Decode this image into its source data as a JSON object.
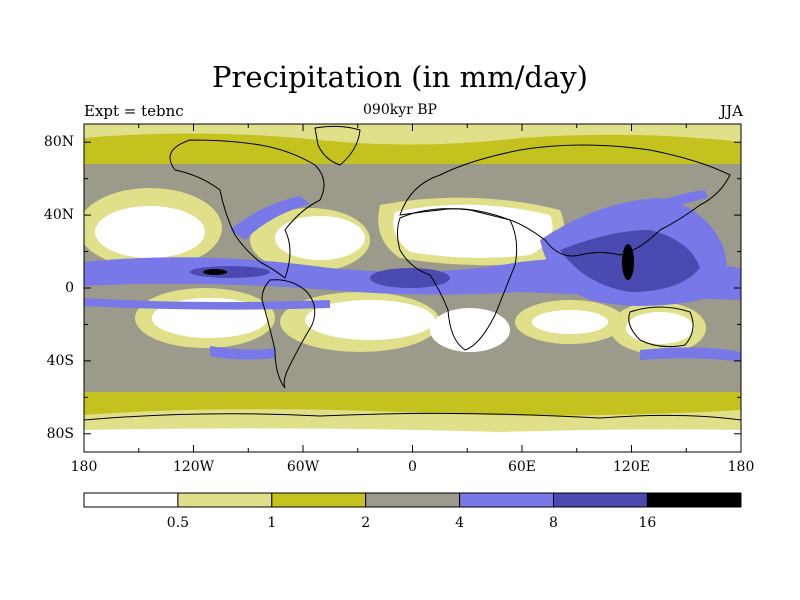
{
  "title": "Precipitation (in mm/day)",
  "subtitle": "090kyr BP",
  "left_label": "Expt = tebnc",
  "right_label": "JJA",
  "lon_ticks": [
    "180",
    "120W",
    "60W",
    "0",
    "60E",
    "120E",
    "180"
  ],
  "lat_ticks": [
    "80N",
    "40N",
    "0",
    "40S",
    "80S"
  ],
  "colorbar": {
    "labels": [
      "0.5",
      "1",
      "2",
      "4",
      "8",
      "16"
    ],
    "colors": [
      "#ffffff",
      "#e0e08a",
      "#c4c21e",
      "#9c9a8a",
      "#7878e8",
      "#4a4ab0",
      "#000000"
    ]
  },
  "palette": {
    "white": "#ffffff",
    "light_olive": "#e0e08a",
    "olive": "#c4c21e",
    "gray": "#9c9a8a",
    "blue": "#7878e8",
    "dark_blue": "#4a4ab0",
    "black": "#000000"
  }
}
